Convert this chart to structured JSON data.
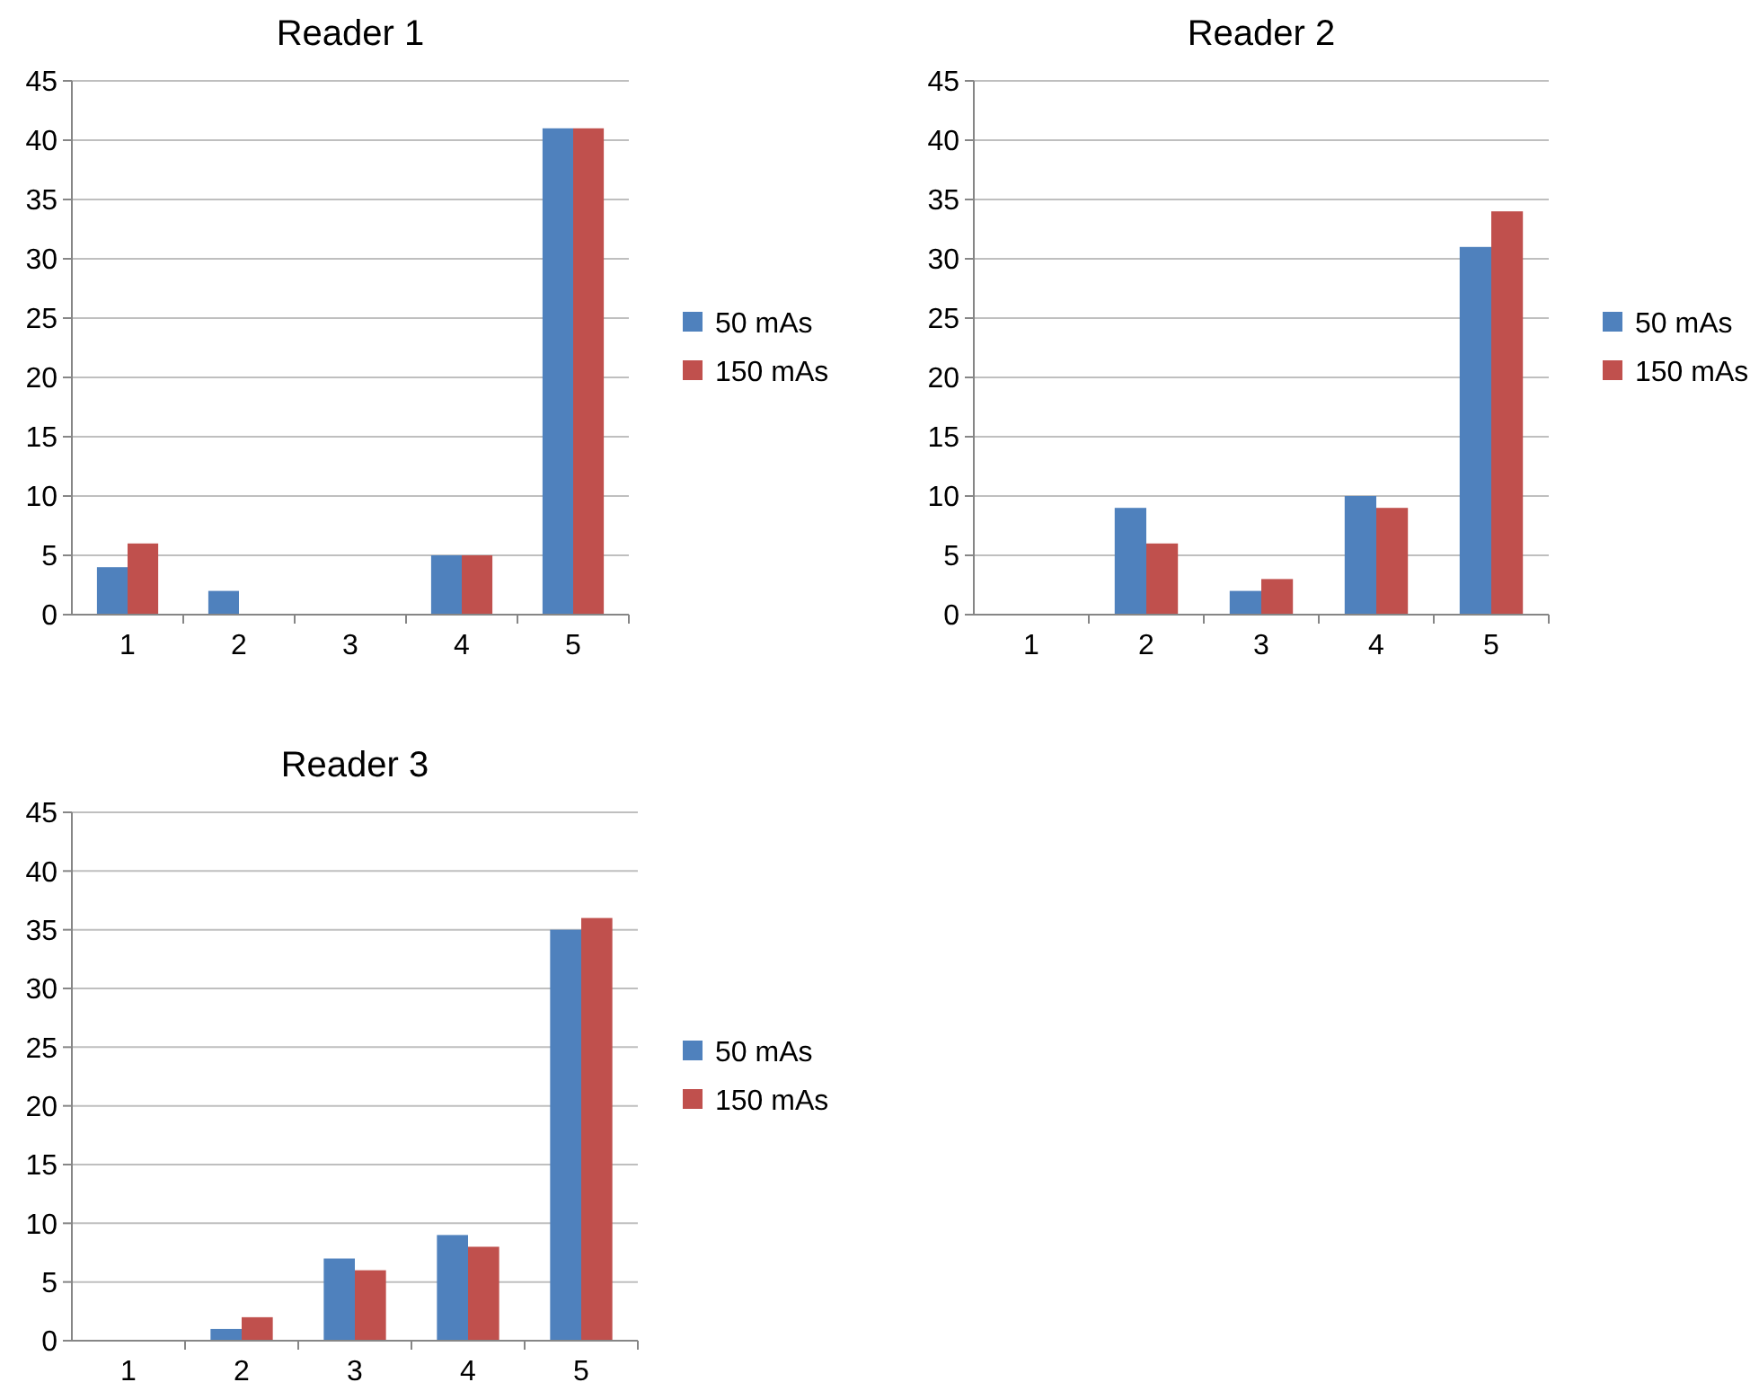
{
  "chart_data": [
    {
      "type": "bar",
      "title": "Reader 1",
      "categories": [
        "1",
        "2",
        "3",
        "4",
        "5"
      ],
      "series": [
        {
          "name": "50 mAs",
          "color": "#4f81bd",
          "values": [
            4,
            2,
            0,
            5,
            41
          ]
        },
        {
          "name": "150 mAs",
          "color": "#c0504d",
          "values": [
            6,
            0,
            0,
            5,
            41
          ]
        }
      ],
      "ylim": [
        0,
        45
      ],
      "yticks": [
        0,
        5,
        10,
        15,
        20,
        25,
        30,
        35,
        40,
        45
      ],
      "grid": "y",
      "legend": "right"
    },
    {
      "type": "bar",
      "title": "Reader 2",
      "categories": [
        "1",
        "2",
        "3",
        "4",
        "5"
      ],
      "series": [
        {
          "name": "50 mAs",
          "color": "#4f81bd",
          "values": [
            0,
            9,
            2,
            10,
            31
          ]
        },
        {
          "name": "150 mAs",
          "color": "#c0504d",
          "values": [
            0,
            6,
            3,
            9,
            34
          ]
        }
      ],
      "ylim": [
        0,
        45
      ],
      "yticks": [
        0,
        5,
        10,
        15,
        20,
        25,
        30,
        35,
        40,
        45
      ],
      "grid": "y",
      "legend": "right"
    },
    {
      "type": "bar",
      "title": "Reader 3",
      "categories": [
        "1",
        "2",
        "3",
        "4",
        "5"
      ],
      "series": [
        {
          "name": "50 mAs",
          "color": "#4f81bd",
          "values": [
            0,
            1,
            7,
            9,
            35
          ]
        },
        {
          "name": "150 mAs",
          "color": "#c0504d",
          "values": [
            0,
            2,
            6,
            8,
            36
          ]
        }
      ],
      "ylim": [
        0,
        45
      ],
      "yticks": [
        0,
        5,
        10,
        15,
        20,
        25,
        30,
        35,
        40,
        45
      ],
      "grid": "y",
      "legend": "right"
    }
  ]
}
